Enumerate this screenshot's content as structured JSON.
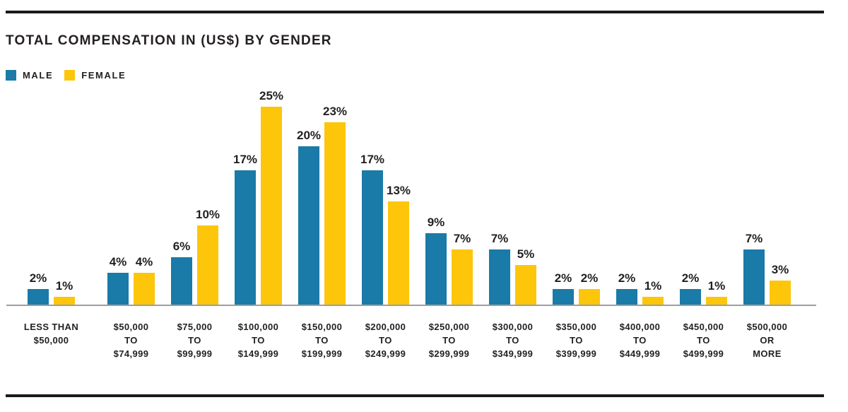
{
  "title": "TOTAL COMPENSATION IN (US$) BY GENDER",
  "legend": {
    "male": "MALE",
    "female": "FEMALE"
  },
  "colors": {
    "male": "#1A7AA8",
    "female": "#FDC60A",
    "text": "#231F20",
    "axis": "#9E9E9E",
    "rule": "#1A1A1A"
  },
  "chart_data": {
    "type": "bar",
    "title": "TOTAL COMPENSATION IN (US$) BY GENDER",
    "categories": [
      [
        "LESS THAN",
        "$50,000"
      ],
      [
        "$50,000",
        "TO",
        "$74,999"
      ],
      [
        "$75,000",
        "TO",
        "$99,999"
      ],
      [
        "$100,000",
        "TO",
        "$149,999"
      ],
      [
        "$150,000",
        "TO",
        "$199,999"
      ],
      [
        "$200,000",
        "TO",
        "$249,999"
      ],
      [
        "$250,000",
        "TO",
        "$299,999"
      ],
      [
        "$300,000",
        "TO",
        "$349,999"
      ],
      [
        "$350,000",
        "TO",
        "$399,999"
      ],
      [
        "$400,000",
        "TO",
        "$449,999"
      ],
      [
        "$450,000",
        "TO",
        "$499,999"
      ],
      [
        "$500,000",
        "OR",
        "MORE"
      ]
    ],
    "series": [
      {
        "name": "MALE",
        "color": "#1A7AA8",
        "values": [
          2,
          4,
          6,
          17,
          20,
          17,
          9,
          7,
          2,
          2,
          2,
          7
        ]
      },
      {
        "name": "FEMALE",
        "color": "#FDC60A",
        "values": [
          1,
          4,
          10,
          25,
          23,
          13,
          7,
          5,
          2,
          1,
          1,
          3
        ]
      }
    ],
    "value_suffix": "%",
    "value_labels": true,
    "ylim": [
      0,
      27
    ],
    "grid": false,
    "legend_position": "top-left"
  }
}
